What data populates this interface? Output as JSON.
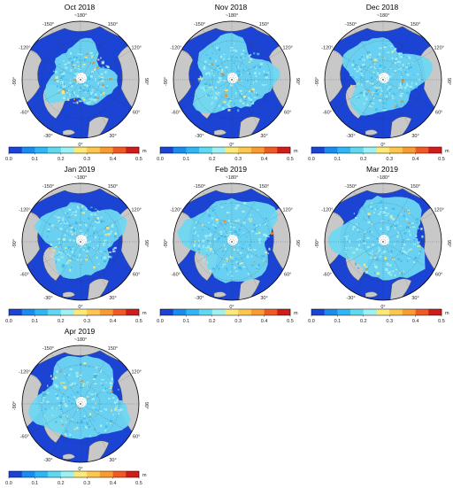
{
  "colorbar": {
    "colors": [
      "#1b43d4",
      "#1a8cf0",
      "#2fb6f5",
      "#5fd8f0",
      "#9ff0f0",
      "#fbe97a",
      "#fdc64e",
      "#f99b32",
      "#ef5a24",
      "#cf1d1b"
    ],
    "ticks": [
      "0.0",
      "0.1",
      "0.2",
      "0.3",
      "0.4",
      "0.5"
    ],
    "unit": "m"
  },
  "degree_labels": [
    "~180°",
    "150°",
    "120°",
    "90°",
    "60°",
    "30°",
    "0°",
    "-30°",
    "-60°",
    "-90°",
    "-120°",
    "-150°"
  ],
  "panels": [
    {
      "title": "Oct 2018"
    },
    {
      "title": "Nov 2018"
    },
    {
      "title": "Dec 2018"
    },
    {
      "title": "Jan 2019"
    },
    {
      "title": "Feb 2019"
    },
    {
      "title": "Mar 2019"
    },
    {
      "title": "Apr 2019"
    }
  ],
  "palette": {
    "ocean": "#1b43d4",
    "land": "#c8c8c8",
    "ice_low": "#6fd8f2",
    "ice_mid": "#a5eef2",
    "ice_high": "#fbe97a",
    "ice_max": "#ef8a28",
    "pole": "#ffffff"
  }
}
